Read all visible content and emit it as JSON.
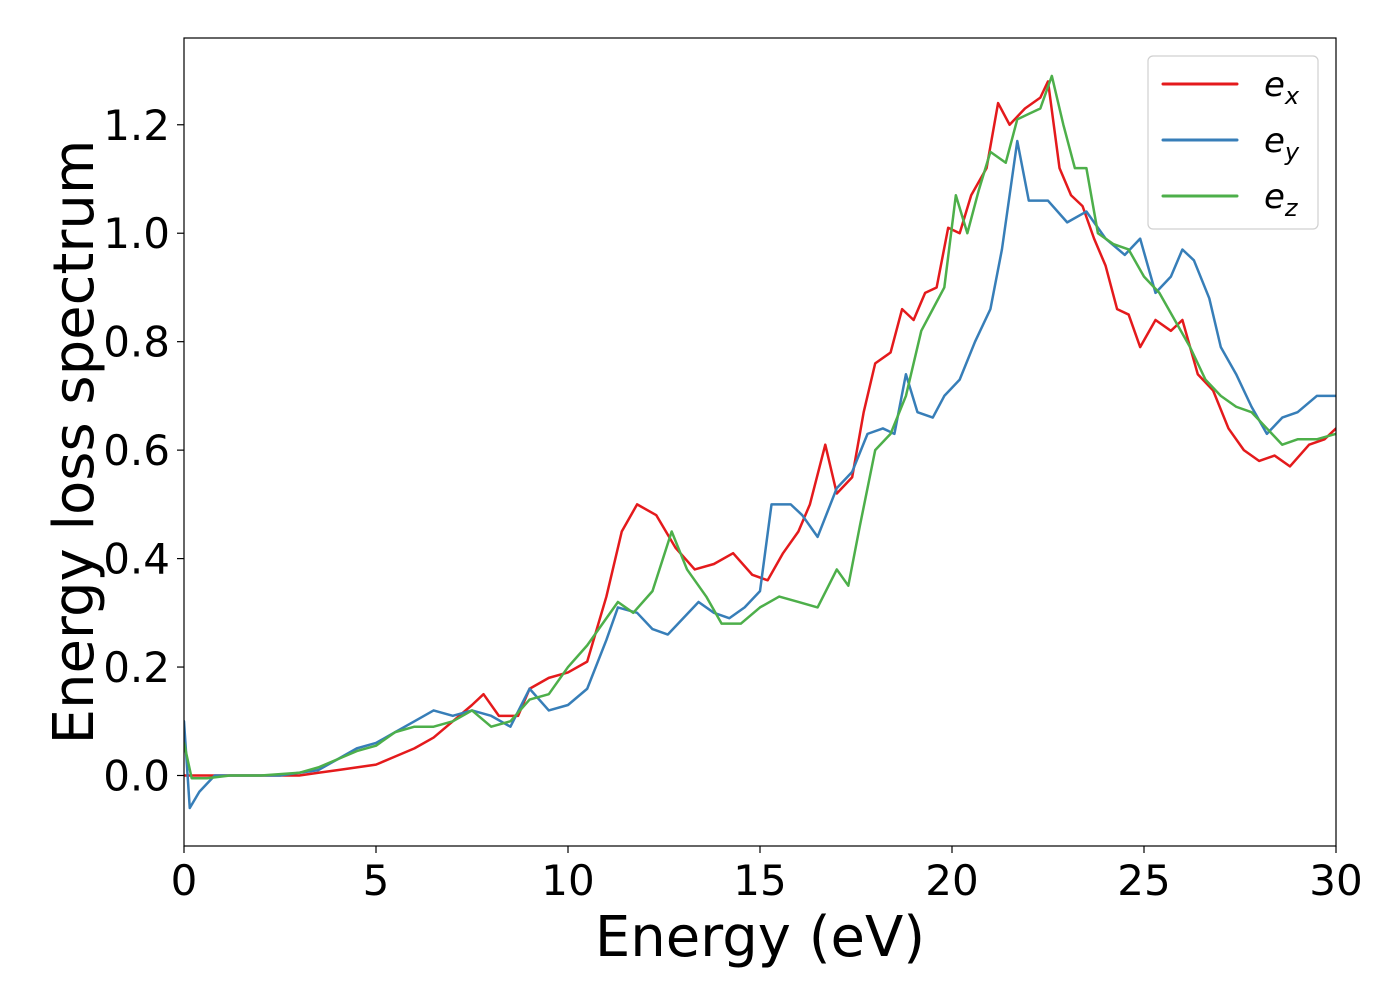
{
  "chart_data": {
    "type": "line",
    "xlabel": "Energy (eV)",
    "ylabel": "Energy loss spectrum",
    "xlim": [
      0,
      30
    ],
    "ylim": [
      -0.13,
      1.36
    ],
    "x_ticks": [
      0,
      5,
      10,
      15,
      20,
      25,
      30
    ],
    "x_tick_labels": [
      "0",
      "5",
      "10",
      "15",
      "20",
      "25",
      "30"
    ],
    "y_ticks": [
      0.0,
      0.2,
      0.4,
      0.6,
      0.8,
      1.0,
      1.2
    ],
    "y_tick_labels": [
      "0.0",
      "0.2",
      "0.4",
      "0.6",
      "0.8",
      "1.0",
      "1.2"
    ],
    "grid": false,
    "legend_position": "top-right",
    "series": [
      {
        "name": "e_x",
        "label_base": "e",
        "label_sub": "x",
        "color": "#e41a1c",
        "points": [
          [
            0,
            0.0
          ],
          [
            0.5,
            0.0
          ],
          [
            1,
            0.0
          ],
          [
            2,
            0.0
          ],
          [
            3,
            0.0
          ],
          [
            3.5,
            0.005
          ],
          [
            4,
            0.01
          ],
          [
            4.5,
            0.015
          ],
          [
            5,
            0.02
          ],
          [
            5.5,
            0.035
          ],
          [
            6,
            0.05
          ],
          [
            6.5,
            0.07
          ],
          [
            7,
            0.1
          ],
          [
            7.5,
            0.13
          ],
          [
            7.8,
            0.15
          ],
          [
            8.2,
            0.11
          ],
          [
            8.7,
            0.11
          ],
          [
            9,
            0.16
          ],
          [
            9.5,
            0.18
          ],
          [
            10,
            0.19
          ],
          [
            10.5,
            0.21
          ],
          [
            11,
            0.33
          ],
          [
            11.4,
            0.45
          ],
          [
            11.8,
            0.5
          ],
          [
            12.3,
            0.48
          ],
          [
            12.8,
            0.42
          ],
          [
            13.3,
            0.38
          ],
          [
            13.8,
            0.39
          ],
          [
            14.3,
            0.41
          ],
          [
            14.8,
            0.37
          ],
          [
            15.2,
            0.36
          ],
          [
            15.6,
            0.41
          ],
          [
            16.0,
            0.45
          ],
          [
            16.3,
            0.5
          ],
          [
            16.7,
            0.61
          ],
          [
            17.0,
            0.52
          ],
          [
            17.4,
            0.55
          ],
          [
            17.7,
            0.67
          ],
          [
            18.0,
            0.76
          ],
          [
            18.4,
            0.78
          ],
          [
            18.7,
            0.86
          ],
          [
            19.0,
            0.84
          ],
          [
            19.3,
            0.89
          ],
          [
            19.6,
            0.9
          ],
          [
            19.9,
            1.01
          ],
          [
            20.2,
            1.0
          ],
          [
            20.5,
            1.07
          ],
          [
            20.9,
            1.12
          ],
          [
            21.2,
            1.24
          ],
          [
            21.5,
            1.2
          ],
          [
            21.9,
            1.23
          ],
          [
            22.3,
            1.25
          ],
          [
            22.5,
            1.28
          ],
          [
            22.8,
            1.12
          ],
          [
            23.1,
            1.07
          ],
          [
            23.4,
            1.05
          ],
          [
            23.7,
            0.99
          ],
          [
            24.0,
            0.94
          ],
          [
            24.3,
            0.86
          ],
          [
            24.6,
            0.85
          ],
          [
            24.9,
            0.79
          ],
          [
            25.3,
            0.84
          ],
          [
            25.7,
            0.82
          ],
          [
            26.0,
            0.84
          ],
          [
            26.4,
            0.74
          ],
          [
            26.8,
            0.71
          ],
          [
            27.2,
            0.64
          ],
          [
            27.6,
            0.6
          ],
          [
            28.0,
            0.58
          ],
          [
            28.4,
            0.59
          ],
          [
            28.8,
            0.57
          ],
          [
            29.3,
            0.61
          ],
          [
            29.7,
            0.62
          ],
          [
            30.0,
            0.64
          ]
        ]
      },
      {
        "name": "e_y",
        "label_base": "e",
        "label_sub": "y",
        "color": "#377eb8",
        "points": [
          [
            0,
            0.1
          ],
          [
            0.15,
            -0.06
          ],
          [
            0.4,
            -0.03
          ],
          [
            0.8,
            0.0
          ],
          [
            1.5,
            0.0
          ],
          [
            2.5,
            0.0
          ],
          [
            3.0,
            0.005
          ],
          [
            3.5,
            0.01
          ],
          [
            4.0,
            0.03
          ],
          [
            4.5,
            0.05
          ],
          [
            5.0,
            0.06
          ],
          [
            5.5,
            0.08
          ],
          [
            6.0,
            0.1
          ],
          [
            6.5,
            0.12
          ],
          [
            7.0,
            0.11
          ],
          [
            7.5,
            0.12
          ],
          [
            8.0,
            0.11
          ],
          [
            8.5,
            0.09
          ],
          [
            9.0,
            0.16
          ],
          [
            9.5,
            0.12
          ],
          [
            10.0,
            0.13
          ],
          [
            10.5,
            0.16
          ],
          [
            11.0,
            0.25
          ],
          [
            11.3,
            0.31
          ],
          [
            11.8,
            0.3
          ],
          [
            12.2,
            0.27
          ],
          [
            12.6,
            0.26
          ],
          [
            13.0,
            0.29
          ],
          [
            13.4,
            0.32
          ],
          [
            13.8,
            0.3
          ],
          [
            14.2,
            0.29
          ],
          [
            14.6,
            0.31
          ],
          [
            15.0,
            0.34
          ],
          [
            15.3,
            0.5
          ],
          [
            15.8,
            0.5
          ],
          [
            16.1,
            0.48
          ],
          [
            16.5,
            0.44
          ],
          [
            17.0,
            0.53
          ],
          [
            17.4,
            0.56
          ],
          [
            17.8,
            0.63
          ],
          [
            18.2,
            0.64
          ],
          [
            18.5,
            0.63
          ],
          [
            18.8,
            0.74
          ],
          [
            19.1,
            0.67
          ],
          [
            19.5,
            0.66
          ],
          [
            19.8,
            0.7
          ],
          [
            20.2,
            0.73
          ],
          [
            20.6,
            0.8
          ],
          [
            21.0,
            0.86
          ],
          [
            21.3,
            0.97
          ],
          [
            21.7,
            1.17
          ],
          [
            22.0,
            1.06
          ],
          [
            22.5,
            1.06
          ],
          [
            23.0,
            1.02
          ],
          [
            23.5,
            1.04
          ],
          [
            24.0,
            0.99
          ],
          [
            24.5,
            0.96
          ],
          [
            24.9,
            0.99
          ],
          [
            25.3,
            0.89
          ],
          [
            25.7,
            0.92
          ],
          [
            26.0,
            0.97
          ],
          [
            26.3,
            0.95
          ],
          [
            26.7,
            0.88
          ],
          [
            27.0,
            0.79
          ],
          [
            27.4,
            0.74
          ],
          [
            27.8,
            0.68
          ],
          [
            28.2,
            0.63
          ],
          [
            28.6,
            0.66
          ],
          [
            29.0,
            0.67
          ],
          [
            29.5,
            0.7
          ],
          [
            30.0,
            0.7
          ]
        ]
      },
      {
        "name": "e_z",
        "label_base": "e",
        "label_sub": "z",
        "color": "#4daf4a",
        "points": [
          [
            0,
            0.06
          ],
          [
            0.2,
            -0.005
          ],
          [
            0.6,
            -0.005
          ],
          [
            1.2,
            0.0
          ],
          [
            2.0,
            0.0
          ],
          [
            3.0,
            0.005
          ],
          [
            3.5,
            0.015
          ],
          [
            4.0,
            0.03
          ],
          [
            4.5,
            0.045
          ],
          [
            5.0,
            0.055
          ],
          [
            5.5,
            0.08
          ],
          [
            6.0,
            0.09
          ],
          [
            6.5,
            0.09
          ],
          [
            7.0,
            0.1
          ],
          [
            7.5,
            0.12
          ],
          [
            8.0,
            0.09
          ],
          [
            8.5,
            0.1
          ],
          [
            9.0,
            0.14
          ],
          [
            9.5,
            0.15
          ],
          [
            10.0,
            0.2
          ],
          [
            10.5,
            0.24
          ],
          [
            11.0,
            0.29
          ],
          [
            11.3,
            0.32
          ],
          [
            11.7,
            0.3
          ],
          [
            12.2,
            0.34
          ],
          [
            12.7,
            0.45
          ],
          [
            13.1,
            0.38
          ],
          [
            13.6,
            0.33
          ],
          [
            14.0,
            0.28
          ],
          [
            14.5,
            0.28
          ],
          [
            15.0,
            0.31
          ],
          [
            15.5,
            0.33
          ],
          [
            16.0,
            0.32
          ],
          [
            16.5,
            0.31
          ],
          [
            17.0,
            0.38
          ],
          [
            17.3,
            0.35
          ],
          [
            17.6,
            0.46
          ],
          [
            18.0,
            0.6
          ],
          [
            18.4,
            0.63
          ],
          [
            18.8,
            0.7
          ],
          [
            19.2,
            0.82
          ],
          [
            19.5,
            0.86
          ],
          [
            19.8,
            0.9
          ],
          [
            20.1,
            1.07
          ],
          [
            20.4,
            1.0
          ],
          [
            20.7,
            1.08
          ],
          [
            21.0,
            1.15
          ],
          [
            21.4,
            1.13
          ],
          [
            21.7,
            1.21
          ],
          [
            22.0,
            1.22
          ],
          [
            22.3,
            1.23
          ],
          [
            22.6,
            1.29
          ],
          [
            22.9,
            1.2
          ],
          [
            23.2,
            1.12
          ],
          [
            23.5,
            1.12
          ],
          [
            23.8,
            1.0
          ],
          [
            24.2,
            0.98
          ],
          [
            24.6,
            0.97
          ],
          [
            25.0,
            0.92
          ],
          [
            25.4,
            0.89
          ],
          [
            25.8,
            0.84
          ],
          [
            26.2,
            0.79
          ],
          [
            26.6,
            0.73
          ],
          [
            27.0,
            0.7
          ],
          [
            27.4,
            0.68
          ],
          [
            27.8,
            0.67
          ],
          [
            28.2,
            0.64
          ],
          [
            28.6,
            0.61
          ],
          [
            29.0,
            0.62
          ],
          [
            29.5,
            0.62
          ],
          [
            30.0,
            0.63
          ]
        ]
      }
    ]
  }
}
